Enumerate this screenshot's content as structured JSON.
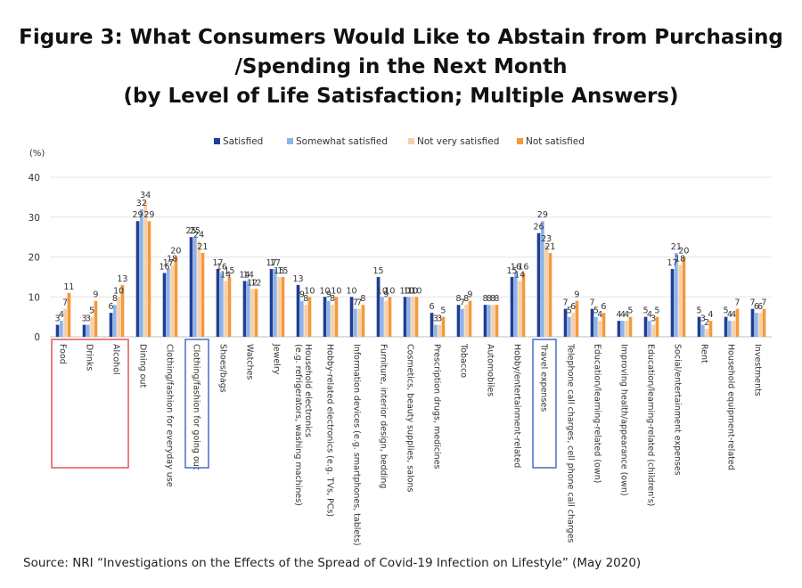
{
  "title_lines": [
    "Figure 3: What Consumers Would Like to Abstain from Purchasing",
    "/Spending in the Next Month",
    "(by Level of Life Satisfaction; Multiple Answers)"
  ],
  "source": "Source: NRI “Investigations on the Effects of the Spread of Covid-19 Infection on Lifestyle” (May 2020)",
  "colors": {
    "satisfied": "#1f3f94",
    "somewhat_satisfied": "#8db3ec",
    "not_very_satisfied": "#f7cfa8",
    "not_satisfied": "#f39a3c",
    "highlight_red": "#e04a4a",
    "highlight_blue": "#3565c8",
    "axis": "#bfbfbf",
    "gridline": "#e4e4e4"
  },
  "chart_data": {
    "type": "bar",
    "ylabel": "(%)",
    "ylim": [
      0,
      40
    ],
    "yticks": [
      0,
      10,
      20,
      30,
      40
    ],
    "grid": true,
    "legend_position": "top",
    "categories": [
      "Food",
      "Drinks",
      "Alcohol",
      "Dining out",
      "Clothing/fashion for everyday use",
      "Clothing/fashion for going out",
      "Shoes/bags",
      "Watches",
      "Jewelry",
      "Household electronics\n(e.g. refrigerators, washing machines)",
      "Hobby-related electronics (e.g. TVs, PCs)",
      "Information devices (e.g. smartphones, tablets)",
      "Furniture, interior design, bedding",
      "Cosmetics, beauty supplies, salons",
      "Prescription drugs, medicines",
      "Tobacco",
      "Automobiles",
      "Hobby/entertainment-related",
      "Travel expenses",
      "Telephone call charges, cell phone call charges",
      "Education/learning-related (own)",
      "Improving health/appearance (own)",
      "Education/learning-related (children's)",
      "Social/entertainment expenses",
      "Rent",
      "Household equipment-related",
      "Investments"
    ],
    "series": [
      {
        "name": "Satisfied",
        "values": [
          3,
          3,
          6,
          29,
          16,
          25,
          17,
          14,
          17,
          13,
          10,
          10,
          15,
          10,
          6,
          8,
          8,
          15,
          26,
          7,
          7,
          4,
          5,
          17,
          5,
          5,
          7
        ]
      },
      {
        "name": "Somewhat satisfied",
        "values": [
          4,
          3,
          8,
          32,
          17,
          25,
          16,
          14,
          17,
          9,
          9,
          7,
          10,
          10,
          3,
          7,
          8,
          16,
          29,
          5,
          5,
          4,
          4,
          21,
          3,
          4,
          6
        ]
      },
      {
        "name": "Not very satisfied",
        "values": [
          7,
          5,
          10,
          34,
          18,
          24,
          14,
          12,
          15,
          8,
          8,
          7,
          9,
          10,
          3,
          8,
          8,
          14,
          23,
          6,
          4,
          4,
          3,
          18,
          2,
          4,
          6
        ]
      },
      {
        "name": "Not satisfied",
        "values": [
          11,
          9,
          13,
          29,
          20,
          21,
          15,
          12,
          15,
          10,
          10,
          8,
          10,
          10,
          5,
          9,
          8,
          16,
          21,
          9,
          6,
          5,
          5,
          20,
          4,
          7,
          7
        ]
      }
    ],
    "highlight_groups": [
      {
        "color": "red",
        "categories": [
          0,
          2
        ]
      },
      {
        "color": "blue",
        "categories": [
          5,
          5
        ]
      },
      {
        "color": "blue",
        "categories": [
          18,
          18
        ]
      }
    ]
  }
}
